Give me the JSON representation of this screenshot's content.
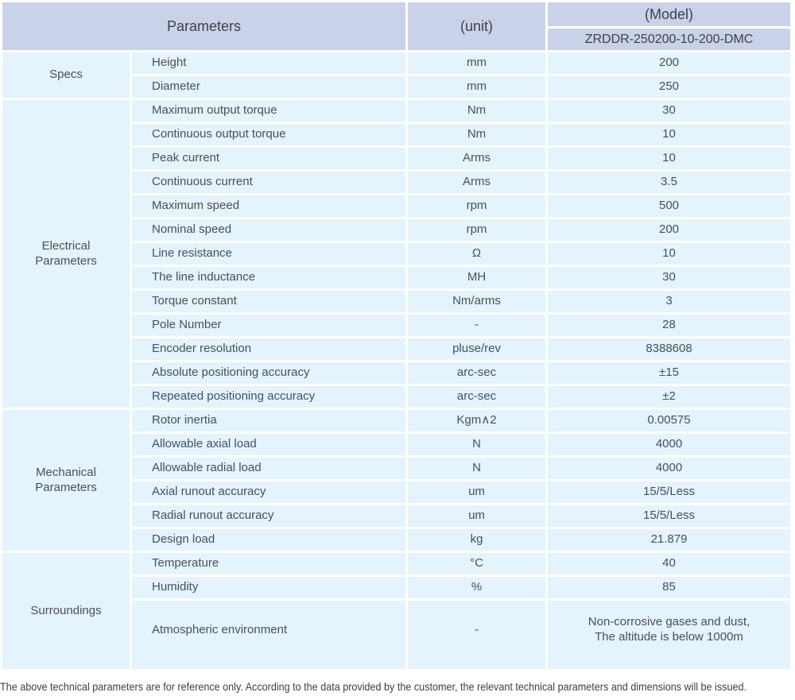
{
  "table": {
    "header": {
      "parameters": "Parameters",
      "unit": "(unit)",
      "model": "(Model)",
      "model_value": "ZRDDR-250200-10-200-DMC"
    },
    "sections": [
      {
        "id": "specs",
        "group": "Specs",
        "rows": [
          {
            "param": "Height",
            "unit": "mm",
            "value": "200"
          },
          {
            "param": "Diameter",
            "unit": "mm",
            "value": "250"
          }
        ]
      },
      {
        "id": "electrical-parameters",
        "group": "Electrical\nParameters",
        "rows": [
          {
            "param": "Maximum output torque",
            "unit": "Nm",
            "value": "30"
          },
          {
            "param": "Continuous output torque",
            "unit": "Nm",
            "value": "10"
          },
          {
            "param": "Peak current",
            "unit": "Arms",
            "value": "10"
          },
          {
            "param": "Continuous current",
            "unit": "Arms",
            "value": "3.5"
          },
          {
            "param": "Maximum speed",
            "unit": "rpm",
            "value": "500"
          },
          {
            "param": "Nominal speed",
            "unit": "rpm",
            "value": "200"
          },
          {
            "param": "Line resistance",
            "unit": "Ω",
            "value": "10"
          },
          {
            "param": "The line inductance",
            "unit": "MH",
            "value": "30"
          },
          {
            "param": "Torque constant",
            "unit": "Nm/arms",
            "value": "3"
          },
          {
            "param": "Pole Number",
            "unit": "-",
            "value": "28"
          },
          {
            "param": "Encoder resolution",
            "unit": "pluse/rev",
            "value": "8388608"
          },
          {
            "param": "Absolute positioning accuracy",
            "unit": "arc-sec",
            "value": "±15"
          },
          {
            "param": "Repeated positioning accuracy",
            "unit": "arc-sec",
            "value": "±2"
          }
        ]
      },
      {
        "id": "mechanical-parameters",
        "group": "Mechanical\nParameters",
        "rows": [
          {
            "param": "Rotor inertia",
            "unit": "Kgm∧2",
            "value": "0.00575"
          },
          {
            "param": "Allowable axial load",
            "unit": "N",
            "value": "4000"
          },
          {
            "param": "Allowable radial load",
            "unit": "N",
            "value": "4000"
          },
          {
            "param": "Axial runout accuracy",
            "unit": "um",
            "value": "15/5/Less"
          },
          {
            "param": "Radial runout accuracy",
            "unit": "um",
            "value": "15/5/Less"
          },
          {
            "param": "Design load",
            "unit": "kg",
            "value": "21.879"
          }
        ]
      },
      {
        "id": "surroundings",
        "group": "Surroundings",
        "rows": [
          {
            "param": "Temperature",
            "unit": "°C",
            "value": "40"
          },
          {
            "param": "Humidity",
            "unit": "%",
            "value": "85"
          },
          {
            "param": "Atmospheric environment",
            "unit": "-",
            "value": "Non-corrosive gases and dust,\nThe altitude is below 1000m",
            "tall": true
          }
        ]
      }
    ]
  },
  "footer": {
    "note": "The above technical parameters are for reference only. According to the data provided by the customer, the relevant technical parameters and dimensions will be issued."
  },
  "colors": {
    "header_bg": "#cad2e9",
    "row_bg": "#e4f3fc",
    "gap": "#ffffff",
    "text": "#4a4f58"
  }
}
